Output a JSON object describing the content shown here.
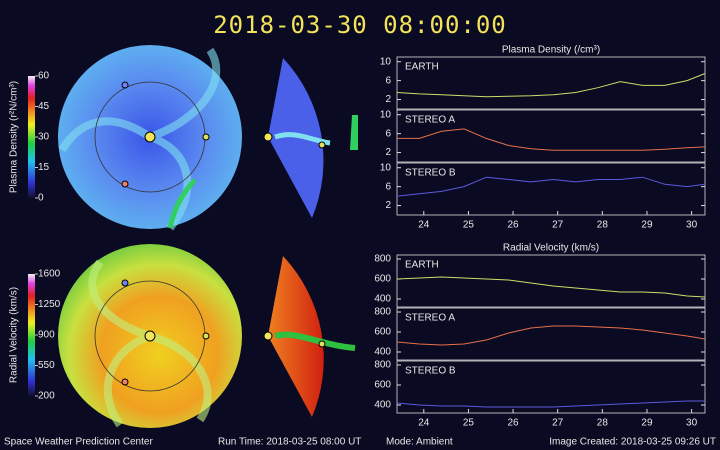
{
  "title": "2018-03-30 08:00:00",
  "footer": {
    "left": "Space Weather Prediction Center",
    "run_time": "Run Time: 2018-03-25 08:00 UT",
    "mode": "Mode: Ambient",
    "created": "Image Created: 2018-03-25 09:26 UT"
  },
  "colorbars": [
    {
      "label": "Plasma Density (r²N/cm³)",
      "ticks": [
        0,
        15,
        30,
        45,
        60
      ]
    },
    {
      "label": "Radial Velocity (km/s)",
      "ticks": [
        200,
        550,
        900,
        1250,
        1600
      ]
    }
  ],
  "chart_data": [
    {
      "type": "line",
      "title": "Plasma Density (/cm³)",
      "label": "EARTH",
      "color": "#c8e06a",
      "x": [
        23.4,
        23.9,
        24.4,
        24.9,
        25.4,
        25.9,
        26.4,
        26.9,
        27.4,
        27.9,
        28.4,
        28.9,
        29.4,
        29.9,
        30.3
      ],
      "values": [
        3.5,
        3.2,
        3,
        2.8,
        2.6,
        2.7,
        2.8,
        3,
        3.5,
        4.5,
        5.8,
        5,
        5,
        6,
        7.5
      ],
      "xlim": [
        23.4,
        30.3
      ],
      "ylim": [
        0,
        11
      ],
      "yticks": [
        2,
        6,
        10
      ]
    },
    {
      "type": "line",
      "label": "STEREO A",
      "color": "#e8704a",
      "x": [
        23.4,
        23.9,
        24.4,
        24.9,
        25.4,
        25.9,
        26.4,
        26.9,
        27.4,
        27.9,
        28.4,
        28.9,
        29.4,
        29.9,
        30.3
      ],
      "values": [
        5,
        5,
        6.5,
        7,
        5,
        3.5,
        2.8,
        2.5,
        2.5,
        2.5,
        2.5,
        2.5,
        2.7,
        3,
        3.2
      ],
      "xlim": [
        23.4,
        30.3
      ],
      "ylim": [
        0,
        11
      ],
      "yticks": [
        2,
        6,
        10
      ]
    },
    {
      "type": "line",
      "label": "STEREO B",
      "color": "#5a5ae0",
      "x": [
        23.4,
        23.9,
        24.4,
        24.9,
        25.4,
        25.9,
        26.4,
        26.9,
        27.4,
        27.9,
        28.4,
        28.9,
        29.4,
        29.9,
        30.3
      ],
      "values": [
        4,
        4.5,
        5,
        6,
        8,
        7.5,
        7,
        7.5,
        7,
        7.5,
        7.5,
        8,
        6.5,
        6,
        6.5
      ],
      "xlim": [
        23.4,
        30.3
      ],
      "ylim": [
        0,
        11
      ],
      "yticks": [
        2,
        6,
        10
      ],
      "xticks": [
        24,
        25,
        26,
        27,
        28,
        29,
        30
      ]
    },
    {
      "type": "line",
      "title": "Radial Velocity (km/s)",
      "label": "EARTH",
      "color": "#c8e06a",
      "x": [
        23.4,
        23.9,
        24.4,
        24.9,
        25.4,
        25.9,
        26.4,
        26.9,
        27.4,
        27.9,
        28.4,
        28.9,
        29.4,
        29.9,
        30.3
      ],
      "values": [
        600,
        610,
        620,
        610,
        600,
        590,
        560,
        530,
        510,
        490,
        470,
        470,
        460,
        430,
        420
      ],
      "xlim": [
        23.4,
        30.3
      ],
      "ylim": [
        320,
        840
      ],
      "yticks": [
        400,
        600,
        800
      ]
    },
    {
      "type": "line",
      "label": "STEREO A",
      "color": "#e8704a",
      "x": [
        23.4,
        23.9,
        24.4,
        24.9,
        25.4,
        25.9,
        26.4,
        26.9,
        27.4,
        27.9,
        28.4,
        28.9,
        29.4,
        29.9,
        30.3
      ],
      "values": [
        500,
        480,
        470,
        480,
        520,
        590,
        640,
        660,
        660,
        650,
        640,
        620,
        590,
        560,
        530
      ],
      "xlim": [
        23.4,
        30.3
      ],
      "ylim": [
        320,
        840
      ],
      "yticks": [
        400,
        600,
        800
      ]
    },
    {
      "type": "line",
      "label": "STEREO B",
      "color": "#5a5ae0",
      "x": [
        23.4,
        23.9,
        24.4,
        24.9,
        25.4,
        25.9,
        26.4,
        26.9,
        27.4,
        27.9,
        28.4,
        28.9,
        29.4,
        29.9,
        30.3
      ],
      "values": [
        420,
        400,
        390,
        390,
        380,
        380,
        380,
        380,
        390,
        400,
        410,
        420,
        430,
        440,
        440
      ],
      "xlim": [
        23.4,
        30.3
      ],
      "ylim": [
        320,
        840
      ],
      "yticks": [
        400,
        600,
        800
      ],
      "xticks": [
        24,
        25,
        26,
        27,
        28,
        29,
        30
      ]
    }
  ]
}
